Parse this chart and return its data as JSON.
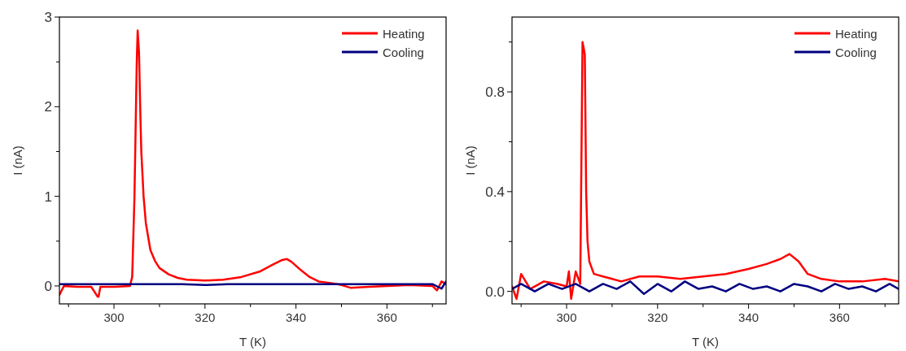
{
  "chart_data": [
    {
      "type": "line",
      "xlabel": "T (K)",
      "ylabel": "I (nA)",
      "xlim": [
        288,
        373
      ],
      "ylim": [
        -0.2,
        3
      ],
      "xticks": [
        {
          "value": 290,
          "label": null
        },
        300,
        {
          "value": 310,
          "label": null
        },
        320,
        {
          "value": 330,
          "label": null
        },
        340,
        {
          "value": 350,
          "label": null
        },
        360,
        {
          "value": 370,
          "label": null
        }
      ],
      "yticks": [
        0,
        {
          "value": 0.5,
          "label": null
        },
        1,
        {
          "value": 1.5,
          "label": null
        },
        2,
        {
          "value": 2.5,
          "label": null
        },
        3
      ],
      "legend": "top right",
      "grid": false,
      "marker": "none",
      "line_style": "solid",
      "series": [
        {
          "name": "Heating",
          "color": "#ff0000",
          "x": [
            288,
            289,
            292,
            295,
            296.4,
            296.6,
            297,
            300,
            303.5,
            304,
            304.5,
            304.8,
            305,
            305.2,
            305.5,
            305.8,
            306,
            306.5,
            307,
            308,
            309,
            310,
            312,
            314,
            316,
            320,
            324,
            328,
            332,
            335,
            337,
            338,
            339,
            341,
            343,
            345,
            348,
            350,
            352,
            356,
            360,
            365,
            370,
            371,
            372,
            373
          ],
          "values": [
            -0.1,
            0.0,
            -0.01,
            -0.01,
            -0.12,
            -0.12,
            -0.01,
            -0.01,
            0.0,
            0.1,
            1.0,
            1.9,
            2.5,
            2.85,
            2.6,
            1.9,
            1.5,
            1.0,
            0.7,
            0.4,
            0.28,
            0.2,
            0.13,
            0.09,
            0.07,
            0.06,
            0.07,
            0.1,
            0.16,
            0.24,
            0.29,
            0.3,
            0.27,
            0.18,
            0.1,
            0.05,
            0.03,
            0.01,
            -0.02,
            -0.01,
            0.0,
            0.01,
            0.0,
            -0.05,
            0.05,
            0.02
          ]
        },
        {
          "name": "Cooling",
          "color": "#000080",
          "x": [
            288,
            295,
            300,
            305,
            310,
            315,
            320,
            325,
            330,
            335,
            340,
            345,
            350,
            355,
            360,
            365,
            370,
            372,
            373
          ],
          "values": [
            0.02,
            0.02,
            0.02,
            0.02,
            0.02,
            0.02,
            0.01,
            0.02,
            0.02,
            0.02,
            0.02,
            0.02,
            0.02,
            0.02,
            0.02,
            0.02,
            0.02,
            -0.03,
            0.05
          ]
        }
      ]
    },
    {
      "type": "line",
      "xlabel": "T (K)",
      "ylabel": "I (nA)",
      "xlim": [
        288,
        373
      ],
      "ylim": [
        -0.05,
        1.1
      ],
      "xticks": [
        {
          "value": 290,
          "label": null
        },
        300,
        {
          "value": 310,
          "label": null
        },
        320,
        {
          "value": 330,
          "label": null
        },
        340,
        {
          "value": 350,
          "label": null
        },
        360,
        {
          "value": 370,
          "label": null
        }
      ],
      "yticks": [
        {
          "value": 0,
          "label": "0.0"
        },
        {
          "value": 0.2,
          "label": null
        },
        0.4,
        {
          "value": 0.6,
          "label": null
        },
        0.8,
        {
          "value": 1.0,
          "label": null
        }
      ],
      "legend": "top right",
      "grid": false,
      "marker": "none",
      "line_style": "solid",
      "series": [
        {
          "name": "Heating",
          "color": "#ff0000",
          "x": [
            288,
            289,
            290,
            292,
            295,
            298,
            300,
            300.5,
            301,
            302,
            303,
            303.5,
            304,
            304.3,
            304.6,
            305,
            306,
            308,
            310,
            312,
            316,
            320,
            325,
            330,
            335,
            340,
            344,
            347,
            349,
            351,
            353,
            356,
            360,
            365,
            370,
            373
          ],
          "values": [
            0.02,
            -0.03,
            0.07,
            0.01,
            0.04,
            0.03,
            0.02,
            0.08,
            -0.03,
            0.08,
            0.03,
            1.0,
            0.95,
            0.4,
            0.2,
            0.12,
            0.07,
            0.06,
            0.05,
            0.04,
            0.06,
            0.06,
            0.05,
            0.06,
            0.07,
            0.09,
            0.11,
            0.13,
            0.15,
            0.12,
            0.07,
            0.05,
            0.04,
            0.04,
            0.05,
            0.04
          ]
        },
        {
          "name": "Cooling",
          "color": "#000080",
          "x": [
            288,
            290,
            293,
            296,
            299,
            302,
            305,
            308,
            311,
            314,
            317,
            320,
            323,
            326,
            329,
            332,
            335,
            338,
            341,
            344,
            347,
            350,
            353,
            356,
            359,
            362,
            365,
            368,
            371,
            373
          ],
          "values": [
            0.01,
            0.03,
            0.0,
            0.03,
            0.01,
            0.03,
            0.0,
            0.03,
            0.01,
            0.04,
            -0.01,
            0.03,
            0.0,
            0.04,
            0.01,
            0.02,
            0.0,
            0.03,
            0.01,
            0.02,
            0.0,
            0.03,
            0.02,
            0.0,
            0.03,
            0.01,
            0.02,
            0.0,
            0.03,
            0.01
          ]
        }
      ]
    }
  ]
}
